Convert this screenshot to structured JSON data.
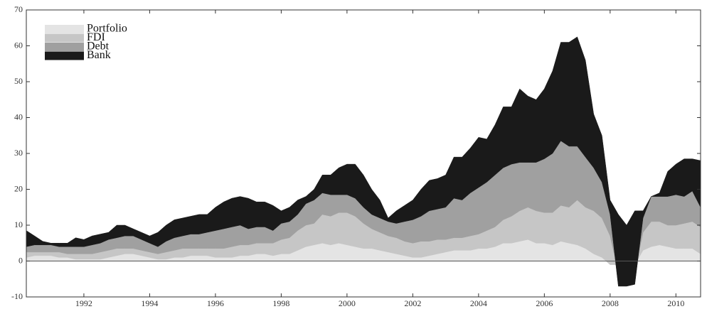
{
  "chart_data": {
    "type": "stacked_area",
    "x": [
      1990.25,
      1990.5,
      1990.75,
      1991,
      1991.25,
      1991.5,
      1991.75,
      1992,
      1992.25,
      1992.5,
      1992.75,
      1993,
      1993.25,
      1993.5,
      1993.75,
      1994,
      1994.25,
      1994.5,
      1994.75,
      1995,
      1995.25,
      1995.5,
      1995.75,
      1996,
      1996.25,
      1996.5,
      1996.75,
      1997,
      1997.25,
      1997.5,
      1997.75,
      1998,
      1998.25,
      1998.5,
      1998.75,
      1999,
      1999.25,
      1999.5,
      1999.75,
      2000,
      2000.25,
      2000.5,
      2000.75,
      2001,
      2001.25,
      2001.5,
      2001.75,
      2002,
      2002.25,
      2002.5,
      2002.75,
      2003,
      2003.25,
      2003.5,
      2003.75,
      2004,
      2004.25,
      2004.5,
      2004.75,
      2005,
      2005.25,
      2005.5,
      2005.75,
      2006,
      2006.25,
      2006.5,
      2006.75,
      2007,
      2007.25,
      2007.5,
      2007.75,
      2008,
      2008.25,
      2008.5,
      2008.75,
      2009,
      2009.25,
      2009.5,
      2009.75,
      2010,
      2010.25,
      2010.5,
      2010.75
    ],
    "series": [
      {
        "name": "Portfolio",
        "color": "#e4e4e4",
        "values": [
          1,
          1.5,
          1.5,
          1.5,
          1,
          1,
          0.5,
          0.5,
          0.5,
          0.5,
          1,
          1.5,
          2,
          2,
          1.5,
          1,
          0.5,
          0.5,
          1,
          1,
          1.5,
          1.5,
          1.5,
          1,
          1,
          1,
          1.5,
          1.5,
          2,
          2,
          1.5,
          2,
          2,
          3,
          4,
          4.5,
          5,
          4.5,
          5,
          4.5,
          4,
          3.5,
          3.5,
          3,
          2.5,
          2,
          1.5,
          1,
          1,
          1.5,
          2,
          2.5,
          3,
          3,
          3,
          3.5,
          3.5,
          4,
          5,
          5,
          5.5,
          6,
          5,
          5,
          4.5,
          5.5,
          5,
          4.5,
          3.5,
          2,
          1,
          -1,
          -1,
          -1,
          -1,
          3,
          4,
          4.5,
          4,
          3.5,
          3.5,
          3.5,
          2
        ]
      },
      {
        "name": "FDI",
        "color": "#c6c6c6",
        "values": [
          1.5,
          1,
          1,
          1,
          1.5,
          1,
          1.5,
          1.5,
          1.5,
          2,
          2,
          2,
          1.5,
          1.5,
          1.5,
          1.5,
          1.5,
          2,
          2,
          2.5,
          2,
          2,
          2,
          2.5,
          2.5,
          3,
          3,
          3,
          3,
          3,
          3.5,
          4,
          4.5,
          5.5,
          6,
          6,
          8,
          8,
          8.5,
          9,
          8.5,
          7,
          5.5,
          5,
          4.5,
          4.5,
          4,
          4,
          4.5,
          4,
          4,
          3.5,
          3.5,
          3.5,
          4,
          4,
          5,
          5.5,
          6.5,
          7.5,
          8.5,
          9,
          9,
          8.5,
          9,
          10,
          10,
          12.5,
          11.5,
          12,
          11,
          8,
          -2,
          -2,
          -2,
          5,
          7,
          6.5,
          6,
          6.5,
          7,
          7.5,
          7.5
        ]
      },
      {
        "name": "Debt",
        "color": "#a0a0a0",
        "values": [
          1.5,
          2,
          2,
          2,
          1.5,
          2,
          2,
          2,
          2.5,
          2.5,
          3,
          3,
          3.5,
          3.5,
          3,
          2.5,
          2,
          3,
          3.5,
          3.5,
          4,
          4,
          4.5,
          5,
          5.5,
          5.5,
          5.5,
          4.5,
          4.5,
          4.5,
          3.5,
          4.5,
          4.5,
          4.5,
          6,
          6.5,
          6,
          6,
          5,
          5,
          5,
          4.5,
          4,
          4,
          4,
          4,
          5.5,
          6.5,
          7,
          8.5,
          8.5,
          9,
          11,
          10.5,
          12,
          13,
          13.5,
          14.5,
          14.5,
          14.5,
          13.5,
          12.5,
          13.5,
          15,
          16.5,
          18,
          17,
          15,
          14,
          12,
          10,
          6,
          -4,
          -4,
          -3.5,
          4,
          7,
          7,
          8,
          8.5,
          7.5,
          8.5,
          5.5
        ]
      },
      {
        "name": "Bank",
        "color": "#1a1a1a",
        "values": [
          4.5,
          2.5,
          1,
          0.5,
          1,
          1,
          2.5,
          2,
          2.5,
          2.5,
          2,
          3.5,
          3,
          2,
          2,
          2,
          4,
          4.5,
          5,
          5,
          5,
          5.5,
          5,
          6.5,
          7.5,
          8,
          8,
          8.5,
          7,
          7,
          7,
          3.5,
          4,
          4,
          2,
          3,
          5,
          5.5,
          7.5,
          8.5,
          9.5,
          9,
          7,
          5,
          1,
          3.5,
          4.5,
          5.5,
          7.5,
          8.5,
          8.5,
          9,
          11.5,
          12,
          12.5,
          14,
          12,
          14,
          17,
          16,
          20.5,
          18.5,
          17.5,
          19.5,
          23,
          27.5,
          29,
          30.5,
          27,
          15,
          13,
          4,
          20,
          17,
          20.5,
          2,
          0,
          1,
          7,
          8.5,
          10.5,
          9,
          13
        ]
      }
    ],
    "xlim": [
      1990.25,
      2010.75
    ],
    "xticks": [
      1992,
      1994,
      1996,
      1998,
      2000,
      2002,
      2004,
      2006,
      2008,
      2010
    ],
    "ylim": [
      -10,
      70
    ],
    "yticks": [
      -10,
      0,
      10,
      20,
      30,
      40,
      50,
      60,
      70
    ],
    "legend": "upper left"
  }
}
